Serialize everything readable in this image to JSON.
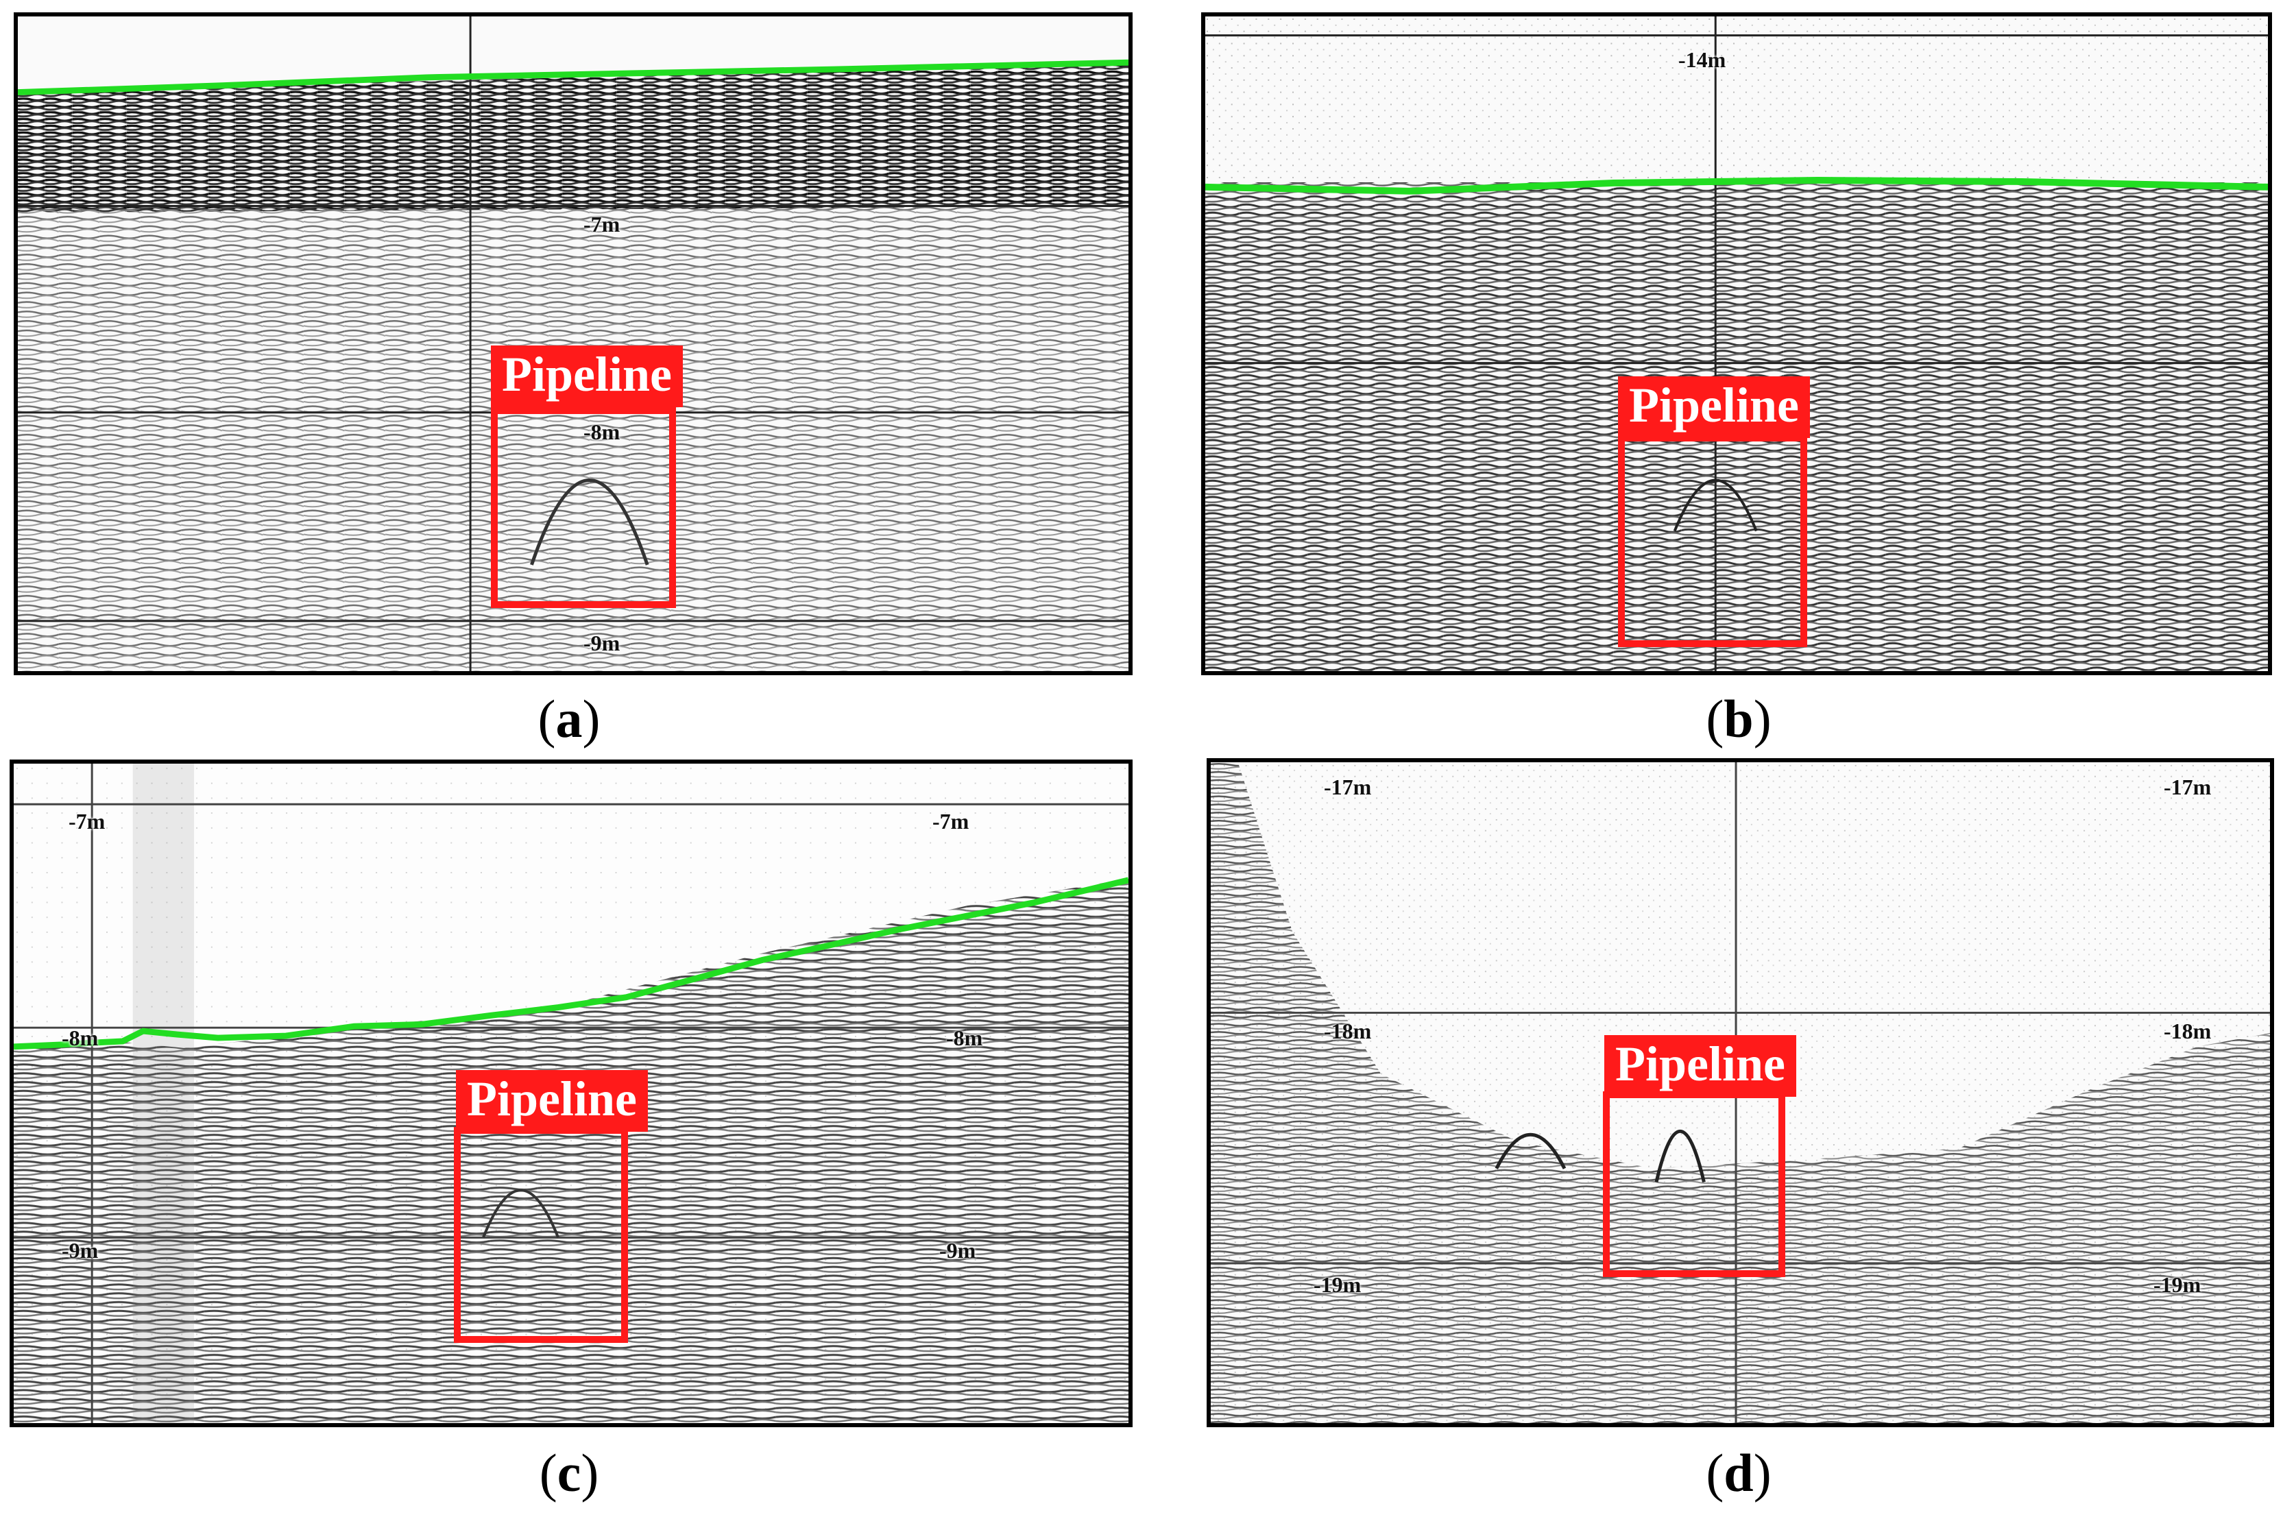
{
  "panels": {
    "a": {
      "caption_open": "(",
      "caption_letter": "a",
      "caption_close": ")",
      "depths": [
        "-7m",
        "-8m",
        "-9m"
      ],
      "annotation": "Pipeline"
    },
    "b": {
      "caption_open": "(",
      "caption_letter": "b",
      "caption_close": ")",
      "depths": [
        "-14m"
      ],
      "annotation": "Pipeline"
    },
    "c": {
      "caption_open": "(",
      "caption_letter": "c",
      "caption_close": ")",
      "depths": [
        "-7m",
        "-7m",
        "-8m",
        "-8m",
        "-9m",
        "-9m"
      ],
      "annotation": "Pipeline"
    },
    "d": {
      "caption_open": "(",
      "caption_letter": "d",
      "caption_close": ")",
      "depths": [
        "-17m",
        "-17m",
        "-18m",
        "-18m",
        "-19m",
        "-19m"
      ],
      "annotation": "Pipeline"
    }
  },
  "colors": {
    "seabed_line": "#22dd22",
    "annotation": "#ff1a1a",
    "frame": "#000000"
  }
}
